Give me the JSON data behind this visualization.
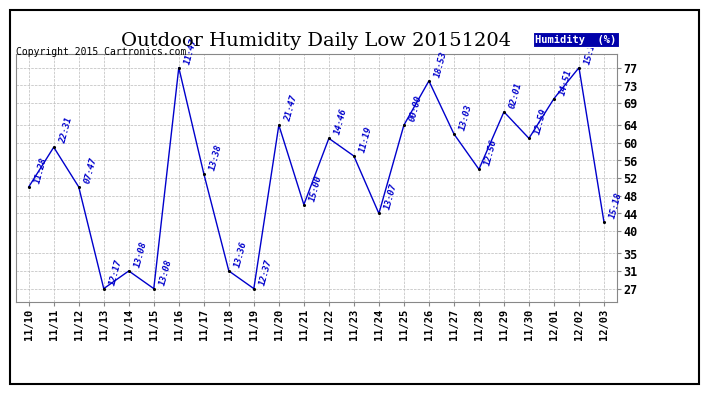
{
  "title": "Outdoor Humidity Daily Low 20151204",
  "copyright": "Copyright 2015 Cartronics.com",
  "legend_label": "Humidity  (%)",
  "dates": [
    "11/10",
    "11/11",
    "11/12",
    "11/13",
    "11/14",
    "11/15",
    "11/16",
    "11/17",
    "11/18",
    "11/19",
    "11/20",
    "11/21",
    "11/22",
    "11/23",
    "11/24",
    "11/25",
    "11/26",
    "11/27",
    "11/28",
    "11/29",
    "11/30",
    "12/01",
    "12/02",
    "12/03"
  ],
  "values": [
    50,
    59,
    50,
    27,
    31,
    27,
    77,
    53,
    31,
    27,
    64,
    46,
    61,
    57,
    44,
    64,
    74,
    62,
    54,
    67,
    61,
    70,
    77,
    42
  ],
  "time_labels": [
    "11:28",
    "22:31",
    "07:47",
    "12:17",
    "13:08",
    "13:08",
    "11:47",
    "13:38",
    "13:36",
    "12:37",
    "21:47",
    "15:00",
    "14:46",
    "11:19",
    "13:07",
    "00:00",
    "18:53",
    "13:03",
    "12:56",
    "02:01",
    "12:59",
    "14:51",
    "15:18",
    "15:18"
  ],
  "yticks": [
    27,
    31,
    35,
    40,
    44,
    48,
    52,
    56,
    60,
    64,
    69,
    73,
    77
  ],
  "line_color": "#0000CC",
  "marker_color": "#000000",
  "bg_color": "#FFFFFF",
  "grid_color": "#BBBBBB",
  "title_fontsize": 14,
  "label_fontsize": 7.5,
  "copyright_fontsize": 7,
  "time_label_fontsize": 6.5,
  "ymin": 24,
  "ymax": 80
}
